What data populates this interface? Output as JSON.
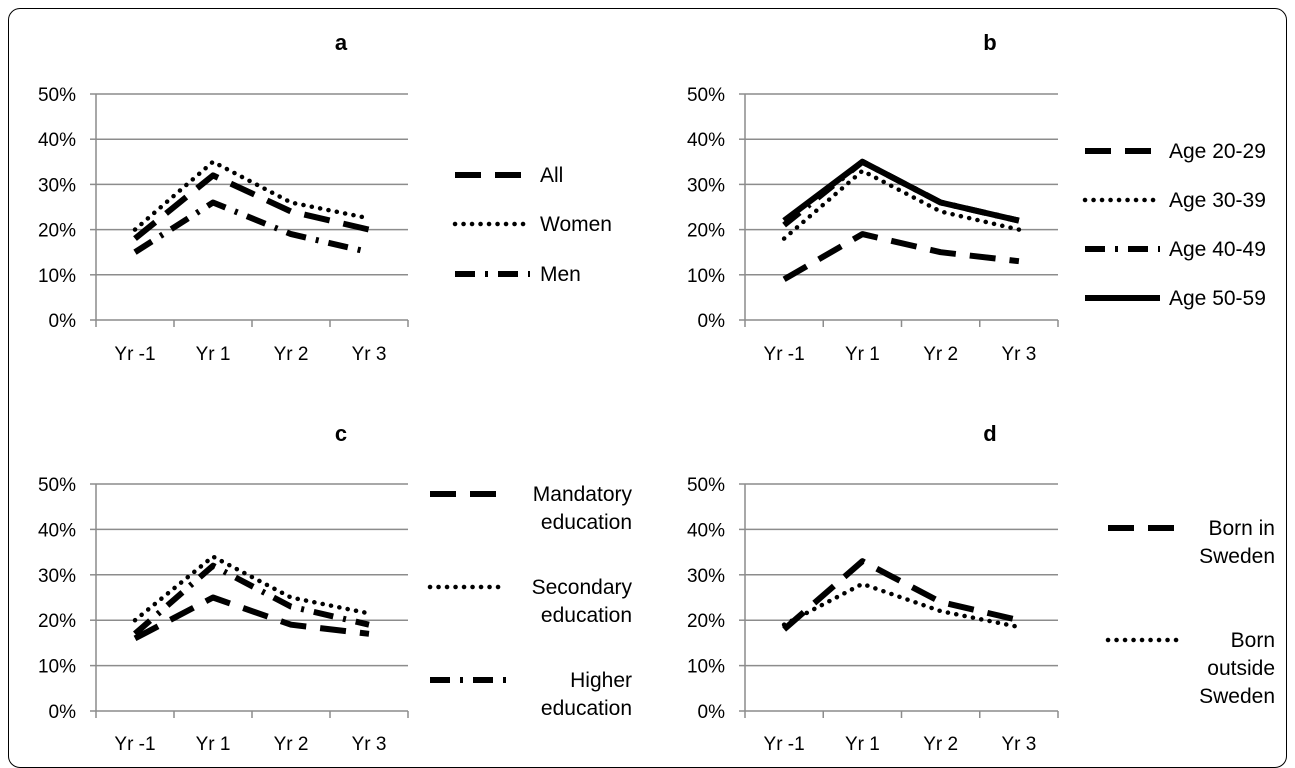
{
  "chart_data": [
    {
      "type": "line",
      "title": "a",
      "categories": [
        "Yr -1",
        "Yr 1",
        "Yr 2",
        "Yr 3"
      ],
      "y_ticks": [
        "0%",
        "10%",
        "20%",
        "30%",
        "40%",
        "50%"
      ],
      "ylim": [
        0,
        50
      ],
      "grid": true,
      "legend_position": "right",
      "series": [
        {
          "name": "All",
          "style": "long-dash",
          "values": [
            18,
            32,
            24,
            20
          ]
        },
        {
          "name": "Women",
          "style": "dotted",
          "values": [
            20,
            35,
            26,
            22.5
          ]
        },
        {
          "name": "Men",
          "style": "dash-dot",
          "values": [
            15,
            26,
            19,
            15
          ]
        }
      ]
    },
    {
      "type": "line",
      "title": "b",
      "categories": [
        "Yr -1",
        "Yr 1",
        "Yr 2",
        "Yr 3"
      ],
      "y_ticks": [
        "0%",
        "10%",
        "20%",
        "30%",
        "40%",
        "50%"
      ],
      "ylim": [
        0,
        50
      ],
      "grid": true,
      "legend_position": "right",
      "series": [
        {
          "name": "Age 20-29",
          "style": "long-dash",
          "values": [
            9,
            19,
            15,
            13
          ]
        },
        {
          "name": "Age 30-39",
          "style": "dotted",
          "values": [
            18,
            33,
            24,
            20
          ]
        },
        {
          "name": "Age 40-49",
          "style": "dash-dot",
          "values": [
            21,
            35,
            26,
            22
          ]
        },
        {
          "name": "Age 50-59",
          "style": "solid",
          "values": [
            22,
            35,
            26,
            22
          ]
        }
      ]
    },
    {
      "type": "line",
      "title": "c",
      "categories": [
        "Yr -1",
        "Yr 1",
        "Yr 2",
        "Yr 3"
      ],
      "y_ticks": [
        "0%",
        "10%",
        "20%",
        "30%",
        "40%",
        "50%"
      ],
      "ylim": [
        0,
        50
      ],
      "grid": true,
      "legend_position": "right",
      "series": [
        {
          "name": "Mandatory education",
          "legend_lines": [
            "Mandatory",
            "education"
          ],
          "style": "long-dash",
          "values": [
            16,
            25,
            19,
            17
          ]
        },
        {
          "name": "Secondary education",
          "legend_lines": [
            "Secondary",
            "education"
          ],
          "style": "dotted",
          "values": [
            20,
            34,
            25,
            21.5
          ]
        },
        {
          "name": "Higher education",
          "legend_lines": [
            "Higher",
            "education"
          ],
          "style": "dash-dot",
          "values": [
            17,
            32,
            23,
            19
          ]
        }
      ]
    },
    {
      "type": "line",
      "title": "d",
      "categories": [
        "Yr -1",
        "Yr 1",
        "Yr 2",
        "Yr 3"
      ],
      "y_ticks": [
        "0%",
        "10%",
        "20%",
        "30%",
        "40%",
        "50%"
      ],
      "ylim": [
        0,
        50
      ],
      "grid": true,
      "legend_position": "right",
      "series": [
        {
          "name": "Born in Sweden",
          "legend_lines": [
            "Born in",
            "Sweden"
          ],
          "style": "long-dash",
          "values": [
            18,
            33,
            24,
            20
          ]
        },
        {
          "name": "Born outside Sweden",
          "legend_lines": [
            "Born",
            "outside",
            "Sweden"
          ],
          "style": "dotted",
          "values": [
            19,
            28,
            22,
            18.5
          ]
        }
      ]
    }
  ]
}
